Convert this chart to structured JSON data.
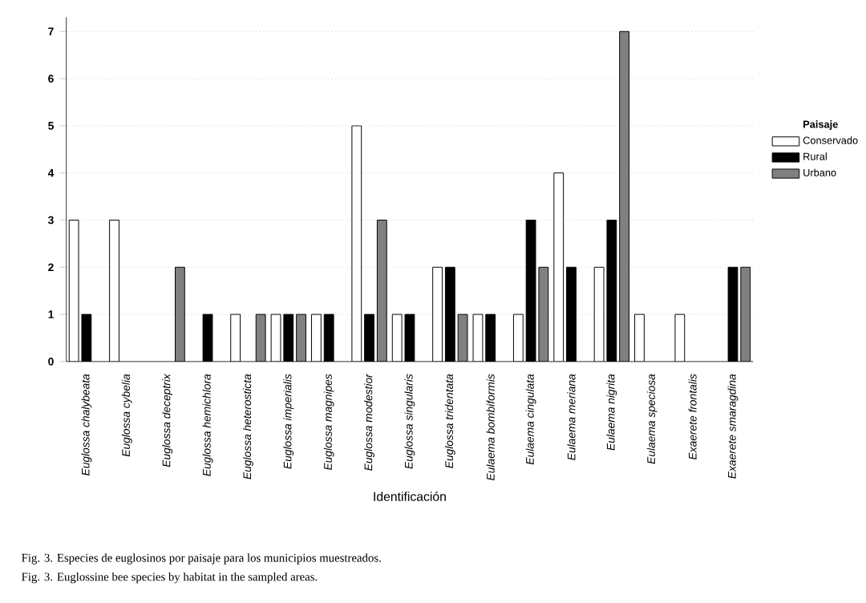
{
  "chart_data": {
    "type": "bar",
    "xlabel": "Identificación",
    "legend_title": "Paisaje",
    "legend": "right",
    "categories": [
      "Euglossa chalybeata",
      "Euglossa cybelia",
      "Euglossa deceptrix",
      "Euglossa hemichlora",
      "Euglossa heterosticta",
      "Euglossa imperialis",
      "Euglossa magnipes",
      "Euglossa modestior",
      "Euglossa singularis",
      "Euglossa tridentata",
      "Eulaema bombiformis",
      "Eulaema cingulata",
      "Eulaema meriana",
      "Eulaema nigrita",
      "Eulaema speciosa",
      "Exaerete frontalis",
      "Exaerete smaragdina"
    ],
    "series": [
      {
        "name": "Conservado",
        "color": "#ffffff",
        "values": [
          3,
          3,
          null,
          null,
          1,
          1,
          1,
          5,
          1,
          2,
          1,
          1,
          4,
          2,
          1,
          1,
          null
        ]
      },
      {
        "name": "Rural",
        "color": "#000000",
        "values": [
          1,
          null,
          null,
          1,
          null,
          1,
          1,
          1,
          1,
          2,
          1,
          3,
          2,
          3,
          null,
          null,
          2
        ]
      },
      {
        "name": "Urbano",
        "color": "#808080",
        "values": [
          null,
          null,
          2,
          null,
          1,
          1,
          null,
          3,
          null,
          1,
          null,
          2,
          null,
          7,
          null,
          null,
          2
        ]
      }
    ],
    "ylim": [
      0,
      7.3
    ],
    "yticks": [
      0,
      1,
      2,
      3,
      4,
      5,
      6,
      7
    ],
    "grid": "y",
    "annotations": [
      "Fig. 3. Especies de euglosinos por paisaje para los municipios muestreados.",
      "Fig. 3. Euglossine bee species by habitat in the sampled areas."
    ]
  }
}
